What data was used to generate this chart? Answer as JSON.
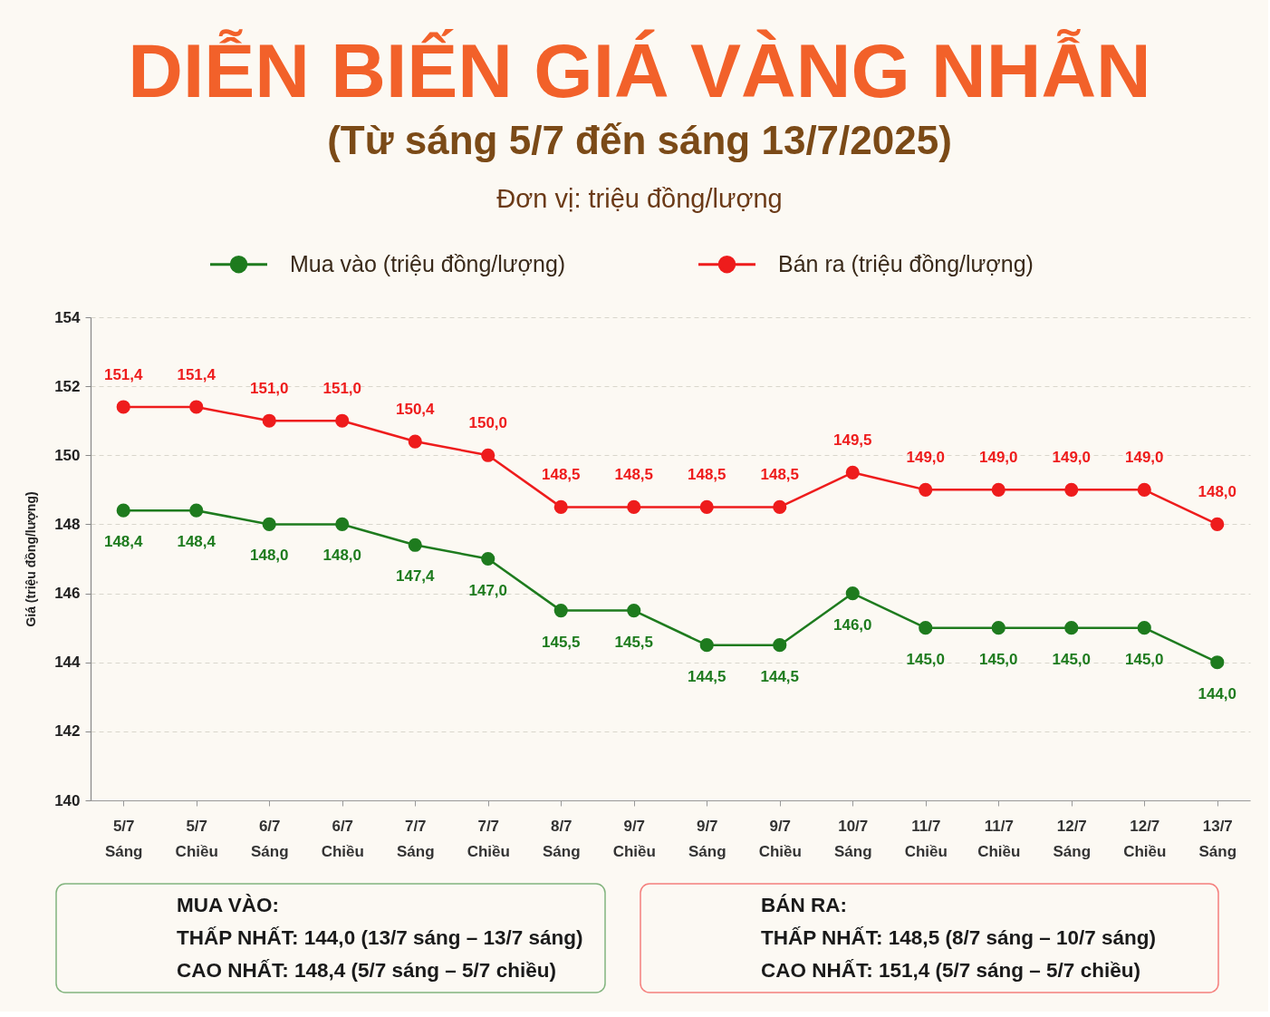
{
  "chart_data": {
    "type": "line",
    "title": "DIỄN BIẾN GIÁ VÀNG NHẪN",
    "subtitle": "(Từ sáng 5/7 đến sáng 13/7/2025)",
    "ylabel": "Giá (triệu đồng/lượng)",
    "categories": [
      "5/7 Sáng",
      "5/7 Chiều",
      "6/7 Sáng",
      "6/7 Chiều",
      "7/7 Sáng",
      "7/7 Chiều",
      "8/7 Sáng",
      "9/7 Chiều",
      "9/7 Sáng",
      "9/7 Chiều",
      "10/7 Sáng",
      "11/7 Chiều",
      "11/7 Chiều",
      "12/7 Sáng",
      "12/7 Chiều",
      "13/7 Sáng"
    ],
    "series": [
      {
        "name": "Mua vào (triệu đồng/lượng)",
        "color": "#1e7b1e",
        "values": [
          148.4,
          148.4,
          148.0,
          148.0,
          147.4,
          147.0,
          145.5,
          145.5,
          144.5,
          144.5,
          146.0,
          145.0,
          145.0,
          145.0,
          145.0,
          144.0
        ],
        "value_labels": [
          "148,4",
          "148,4",
          "148,0",
          "148,0",
          "147,4",
          "147,0",
          "145,5",
          "145,5",
          "144,5",
          "144,5",
          "146,0",
          "145,0",
          "145,0",
          "145,0",
          "145,0",
          "144,0"
        ]
      },
      {
        "name": "Bán ra (triệu đồng/lượng)",
        "color": "#ee1c1c",
        "values": [
          151.4,
          151.4,
          151.0,
          151.0,
          150.4,
          150.0,
          148.5,
          148.5,
          148.5,
          148.5,
          149.5,
          149.0,
          149.0,
          149.0,
          149.0,
          148.0
        ],
        "value_labels": [
          "151,4",
          "151,4",
          "151,0",
          "151,0",
          "150,4",
          "150,0",
          "148,5",
          "148,5",
          "148,5",
          "148,5",
          "149,5",
          "149,0",
          "149,0",
          "149,0",
          "149,0",
          "148,0"
        ]
      }
    ],
    "ylim": [
      140,
      154
    ],
    "yticks": [
      140,
      142,
      144,
      146,
      148,
      150,
      152,
      154
    ],
    "grid": "y",
    "legend": "top",
    "marker": "circle",
    "line_style": "solid",
    "annotations": [
      "Đơn vị: triệu đồng/lượng",
      "MUA VÀO:",
      "THẤP NHẤT: 144,0 (13/7 sáng – 13/7 sáng)",
      "CAO NHẤT: 148,4 (5/7 sáng – 5/7 chiều)",
      "BÁN RA:",
      "THẤP NHẤT: 148,5 (8/7 sáng – 10/7 sáng)",
      "CAO NHẤT: 151,4 (5/7 sáng – 5/7 chiều)"
    ]
  }
}
